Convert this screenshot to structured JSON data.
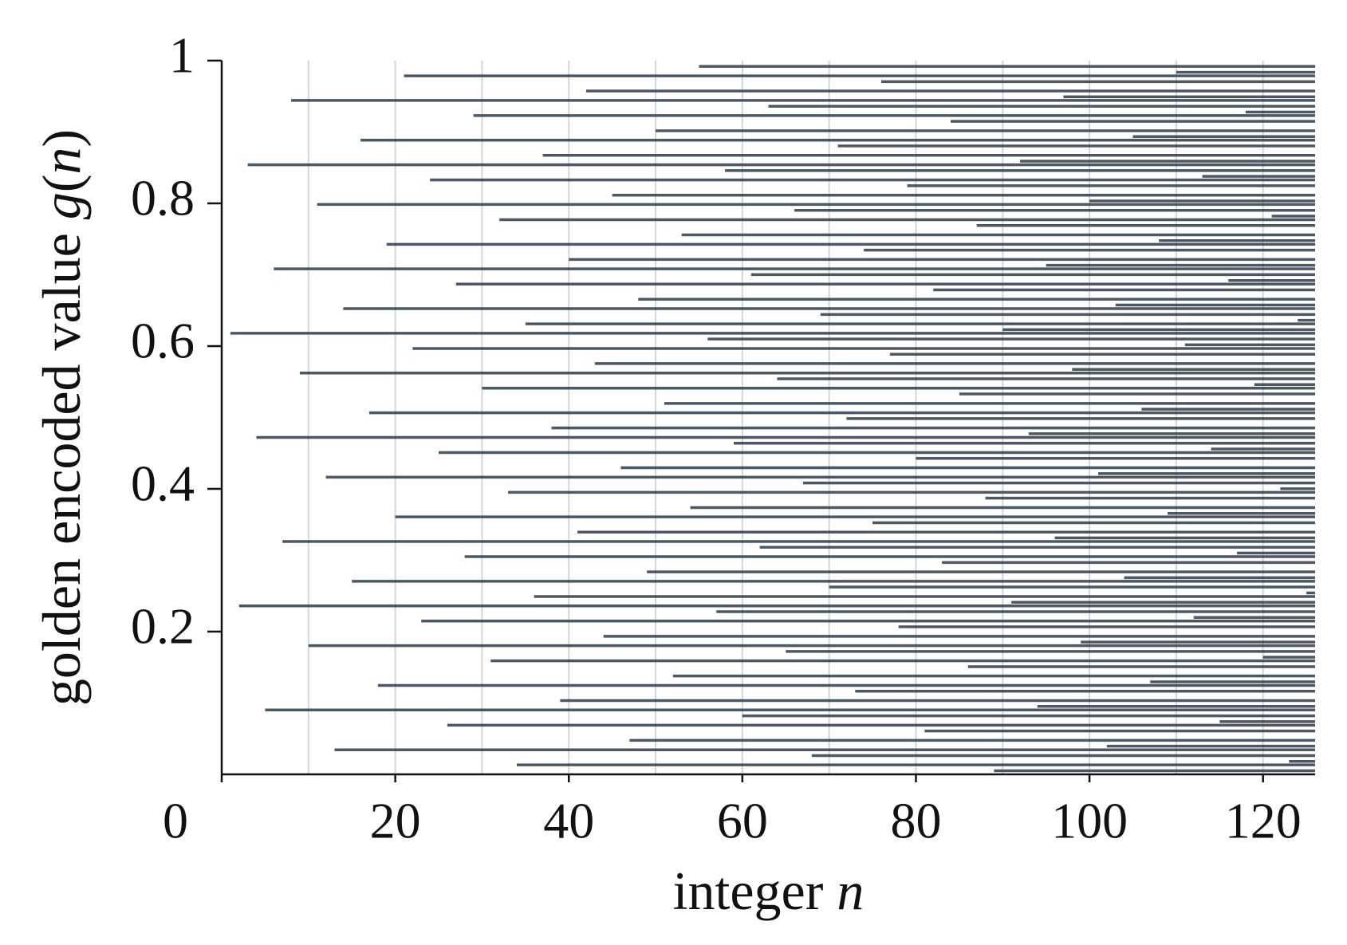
{
  "chart_data": {
    "type": "ray",
    "xlabel": [
      {
        "text": "integer ",
        "italic": false
      },
      {
        "text": "n",
        "italic": true
      }
    ],
    "ylabel": [
      {
        "text": "golden encoded value ",
        "italic": false
      },
      {
        "text": "g",
        "italic": true
      },
      {
        "text": "(",
        "italic": false
      },
      {
        "text": "n",
        "italic": true
      },
      {
        "text": ")",
        "italic": false
      }
    ],
    "color": "#2f3b48",
    "grid_color": "#d4d6d9",
    "xlim": [
      0,
      126
    ],
    "ylim": [
      0,
      1
    ],
    "xticks": [
      0,
      20,
      40,
      60,
      80,
      100,
      120
    ],
    "x_minor_ticks": [
      10,
      20,
      30,
      40,
      50,
      60,
      70,
      80,
      90,
      100,
      110,
      120
    ],
    "yticks": [
      0.2,
      0.4,
      0.6,
      0.8,
      1
    ],
    "grid": true,
    "x": [
      1,
      2,
      3,
      4,
      5,
      6,
      7,
      8,
      9,
      10,
      11,
      12,
      13,
      14,
      15,
      16,
      17,
      18,
      19,
      20,
      21,
      22,
      23,
      24,
      25,
      26,
      27,
      28,
      29,
      30,
      31,
      32,
      33,
      34,
      35,
      36,
      37,
      38,
      39,
      40,
      41,
      42,
      43,
      44,
      45,
      46,
      47,
      48,
      49,
      50,
      51,
      52,
      53,
      54,
      55,
      56,
      57,
      58,
      59,
      60,
      61,
      62,
      63,
      64,
      65,
      66,
      67,
      68,
      69,
      70,
      71,
      72,
      73,
      74,
      75,
      76,
      77,
      78,
      79,
      80,
      81,
      82,
      83,
      84,
      85,
      86,
      87,
      88,
      89,
      90,
      91,
      92,
      93,
      94,
      95,
      96,
      97,
      98,
      99,
      100,
      101,
      102,
      103,
      104,
      105,
      106,
      107,
      108,
      109,
      110,
      111,
      112,
      113,
      114,
      115,
      116,
      117,
      118,
      119,
      120,
      121,
      122,
      123,
      124,
      125
    ],
    "values": [
      0.618,
      0.2361,
      0.8541,
      0.4721,
      0.0902,
      0.7082,
      0.3262,
      0.9443,
      0.5623,
      0.1803,
      0.7984,
      0.4164,
      0.0344,
      0.6525,
      0.2705,
      0.8885,
      0.5066,
      0.1246,
      0.7426,
      0.3607,
      0.9787,
      0.5967,
      0.2148,
      0.8328,
      0.4508,
      0.0689,
      0.6869,
      0.305,
      0.923,
      0.541,
      0.1591,
      0.7771,
      0.3951,
      0.0132,
      0.6312,
      0.2492,
      0.8673,
      0.4853,
      0.1033,
      0.7214,
      0.3394,
      0.9574,
      0.5755,
      0.1935,
      0.8115,
      0.4296,
      0.0476,
      0.6656,
      0.2837,
      0.9017,
      0.5197,
      0.1378,
      0.7558,
      0.3738,
      0.9919,
      0.6099,
      0.2279,
      0.846,
      0.464,
      0.082,
      0.7001,
      0.3181,
      0.9361,
      0.5542,
      0.1722,
      0.7902,
      0.4083,
      0.0263,
      0.6443,
      0.2624,
      0.8804,
      0.4984,
      0.1165,
      0.7345,
      0.3525,
      0.9706,
      0.5886,
      0.2067,
      0.8247,
      0.4427,
      0.0608,
      0.6788,
      0.2968,
      0.9149,
      0.5329,
      0.1509,
      0.769,
      0.387,
      0.005,
      0.6231,
      0.2411,
      0.8591,
      0.4772,
      0.0952,
      0.7132,
      0.3313,
      0.9493,
      0.5673,
      0.1854,
      0.8034,
      0.4214,
      0.0395,
      0.6575,
      0.2755,
      0.8936,
      0.5116,
      0.1296,
      0.7477,
      0.3657,
      0.9837,
      0.6018,
      0.2198,
      0.8378,
      0.4559,
      0.0739,
      0.6919,
      0.31,
      0.928,
      0.5461,
      0.1641,
      0.7821,
      0.4001,
      0.0182,
      0.6362,
      0.2542
    ]
  }
}
